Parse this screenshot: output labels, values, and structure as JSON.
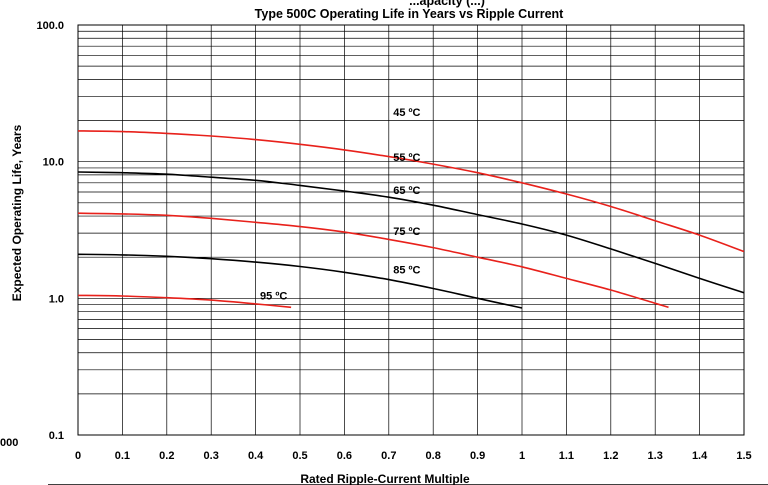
{
  "chart_data": {
    "type": "line",
    "title_partial": "...apacity (...)",
    "title": "Type 500C Operating Life in Years vs Ripple Current",
    "xlabel": "Rated Ripple-Current Multiple",
    "ylabel": "Expected Operating Life, Years",
    "x_ticks": [
      "0",
      "0.1",
      "0.2",
      "0.3",
      "0.4",
      "0.5",
      "0.6",
      "0.7",
      "0.8",
      "0.9",
      "1",
      "1.1",
      "1.2",
      "1.3",
      "1.4",
      "1.5"
    ],
    "y_ticks": [
      "100.0",
      "10.0",
      "1.0",
      "0.1"
    ],
    "stray_label": "000",
    "y_scale": "log",
    "xlim": [
      0,
      1.5
    ],
    "ylim": [
      0.1,
      100
    ],
    "grid": true,
    "series": [
      {
        "name": "45 ºC",
        "color": "#e8211b",
        "x": [
          0,
          0.1,
          0.2,
          0.3,
          0.4,
          0.5,
          0.6,
          0.7,
          0.8,
          0.9,
          1.0,
          1.1,
          1.2,
          1.3,
          1.4,
          1.5
        ],
        "y": [
          16.8,
          16.6,
          16.1,
          15.4,
          14.5,
          13.4,
          12.2,
          10.9,
          9.6,
          8.3,
          7.0,
          5.8,
          4.7,
          3.7,
          2.9,
          2.2
        ]
      },
      {
        "name": "55 ºC",
        "color": "#000000",
        "x": [
          0,
          0.1,
          0.2,
          0.3,
          0.4,
          0.5,
          0.6,
          0.7,
          0.8,
          0.9,
          1.0,
          1.1,
          1.2,
          1.3,
          1.4,
          1.5
        ],
        "y": [
          8.4,
          8.3,
          8.1,
          7.7,
          7.3,
          6.7,
          6.1,
          5.5,
          4.8,
          4.1,
          3.5,
          2.9,
          2.3,
          1.8,
          1.4,
          1.1
        ]
      },
      {
        "name": "65 ºC",
        "color": "#e8211b",
        "x": [
          0,
          0.1,
          0.2,
          0.3,
          0.4,
          0.5,
          0.6,
          0.7,
          0.8,
          0.9,
          1.0,
          1.1,
          1.2,
          1.3,
          1.33
        ],
        "y": [
          4.2,
          4.15,
          4.05,
          3.85,
          3.6,
          3.35,
          3.05,
          2.7,
          2.35,
          2.0,
          1.7,
          1.4,
          1.15,
          0.92,
          0.86
        ]
      },
      {
        "name": "75 ºC",
        "color": "#000000",
        "x": [
          0,
          0.1,
          0.2,
          0.3,
          0.4,
          0.5,
          0.6,
          0.7,
          0.8,
          0.9,
          1.0
        ],
        "y": [
          2.1,
          2.08,
          2.03,
          1.95,
          1.84,
          1.71,
          1.55,
          1.37,
          1.18,
          1.0,
          0.85
        ]
      },
      {
        "name": "85 ºC",
        "color": "#e8211b",
        "x": [
          0,
          0.1,
          0.2,
          0.3,
          0.4,
          0.48
        ],
        "y": [
          1.05,
          1.04,
          1.01,
          0.97,
          0.91,
          0.86
        ]
      },
      {
        "name": "95 ºC",
        "color": "#000000",
        "x": [],
        "y": []
      }
    ],
    "curve_labels": [
      {
        "text": "45 ºC",
        "x": 0.71,
        "y": 21.5
      },
      {
        "text": "55 ºC",
        "x": 0.71,
        "y": 10.1
      },
      {
        "text": "65 ºC",
        "x": 0.71,
        "y": 5.8
      },
      {
        "text": "75 ºC",
        "x": 0.71,
        "y": 2.9
      },
      {
        "text": "85 ºC",
        "x": 0.71,
        "y": 1.52
      },
      {
        "text": "95 ºC",
        "x": 0.41,
        "y": 0.98
      }
    ],
    "colors": {
      "red": "#e8211b",
      "black": "#000000"
    }
  }
}
